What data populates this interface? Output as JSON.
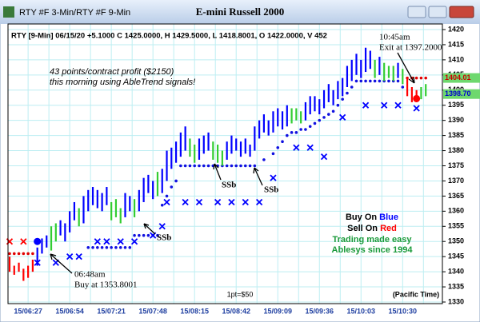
{
  "window_title": "RTY #F 3-Min/RTY #F 9-Min",
  "chart_data": {
    "type": "bar",
    "title": "E-mini Russell 2000",
    "header": "RTY [9-Min] 06/15/20 +5.1000 C 1425.0000, H 1429.5000, L 1418.8001, O 1422.0000, V 452",
    "categories": [
      null,
      null,
      null,
      null,
      "15/06:27",
      null,
      null,
      null,
      null,
      null,
      null,
      null,
      null,
      "15/06:54",
      null,
      null,
      null,
      null,
      null,
      null,
      null,
      null,
      "15/07:21",
      null,
      null,
      null,
      null,
      null,
      null,
      null,
      null,
      "15/07:48",
      null,
      null,
      null,
      null,
      null,
      null,
      null,
      null,
      "15/08:15",
      null,
      null,
      null,
      null,
      null,
      null,
      null,
      null,
      "15/08:42",
      null,
      null,
      null,
      null,
      null,
      null,
      null,
      null,
      "15/09:09",
      null,
      null,
      null,
      null,
      null,
      null,
      null,
      null,
      "15/09:36",
      null,
      null,
      null,
      null,
      null,
      null,
      null,
      null,
      "15/10:03",
      null,
      null,
      null,
      null,
      null,
      null,
      null,
      null,
      "15/10:30",
      null,
      null,
      null,
      null,
      null
    ],
    "low": [
      1340,
      1339,
      1340,
      1337,
      1338,
      1340,
      1342,
      1346,
      1348,
      1347,
      1350,
      1352,
      1350,
      1353,
      1357,
      1355,
      1356,
      1360,
      1362,
      1361,
      1360,
      1362,
      1357,
      1358,
      1356,
      1358,
      1360,
      1358,
      1360,
      1363,
      1366,
      1364,
      1365,
      1366,
      1370,
      1374,
      1376,
      1378,
      1380,
      1378,
      1376,
      1377,
      1379,
      1380,
      1377,
      1376,
      1375,
      1377,
      1379,
      1380,
      1378,
      1379,
      1378,
      1380,
      1384,
      1386,
      1385,
      1386,
      1388,
      1387,
      1388,
      1389,
      1390,
      1389,
      1390,
      1392,
      1393,
      1392,
      1394,
      1396,
      1395,
      1397,
      1398,
      1401,
      1403,
      1405,
      1404,
      1406,
      1407,
      1404,
      1405,
      1403,
      1404,
      1403,
      1404,
      1402,
      1398,
      1396,
      1396,
      1397,
      1398
    ],
    "high": [
      1345,
      1342,
      1343,
      1341,
      1342,
      1344,
      1348,
      1351,
      1352,
      1355,
      1356,
      1357,
      1356,
      1360,
      1363,
      1361,
      1365,
      1367,
      1368,
      1367,
      1366,
      1368,
      1363,
      1364,
      1361,
      1366,
      1365,
      1364,
      1367,
      1371,
      1372,
      1370,
      1373,
      1374,
      1380,
      1381,
      1383,
      1386,
      1388,
      1384,
      1382,
      1384,
      1385,
      1386,
      1383,
      1382,
      1380,
      1383,
      1385,
      1384,
      1383,
      1384,
      1382,
      1388,
      1390,
      1392,
      1390,
      1393,
      1394,
      1393,
      1395,
      1394,
      1394,
      1393,
      1396,
      1398,
      1398,
      1397,
      1400,
      1402,
      1400,
      1403,
      1404,
      1408,
      1410,
      1412,
      1410,
      1414,
      1413,
      1410,
      1411,
      1409,
      1408,
      1408,
      1409,
      1407,
      1404,
      1401,
      1400,
      1401,
      1402
    ],
    "colors": [
      "red",
      "red",
      "red",
      "red",
      "red",
      "red",
      "blue",
      "blue",
      "blue",
      "limegreen",
      "limegreen",
      "blue",
      "blue",
      "blue",
      "blue",
      "limegreen",
      "blue",
      "blue",
      "blue",
      "blue",
      "blue",
      "blue",
      "limegreen",
      "limegreen",
      "limegreen",
      "blue",
      "blue",
      "limegreen",
      "blue",
      "blue",
      "blue",
      "blue",
      "limegreen",
      "blue",
      "blue",
      "blue",
      "blue",
      "blue",
      "blue",
      "limegreen",
      "limegreen",
      "blue",
      "blue",
      "blue",
      "limegreen",
      "limegreen",
      "limegreen",
      "blue",
      "blue",
      "blue",
      "blue",
      "blue",
      "blue",
      "blue",
      "blue",
      "blue",
      "blue",
      "blue",
      "blue",
      "blue",
      "blue",
      "limegreen",
      "limegreen",
      "limegreen",
      "blue",
      "blue",
      "blue",
      "blue",
      "blue",
      "blue",
      "blue",
      "blue",
      "blue",
      "blue",
      "blue",
      "blue",
      "blue",
      "blue",
      "blue",
      "limegreen",
      "blue",
      "limegreen",
      "limegreen",
      "limegreen",
      "blue",
      "limegreen",
      "red",
      "red",
      "red",
      "limegreen",
      "limegreen"
    ],
    "support": [
      null,
      null,
      null,
      null,
      null,
      null,
      null,
      null,
      null,
      null,
      null,
      null,
      null,
      null,
      null,
      null,
      null,
      1348,
      1348,
      1348,
      1348,
      1348,
      1348,
      1348,
      1348,
      1348,
      1348,
      1352,
      1352,
      1352,
      1352,
      1352,
      1352,
      1362,
      1365,
      1368,
      1370,
      1375,
      1375,
      1375,
      1375,
      1375,
      1375,
      1375,
      1375,
      1375,
      1375,
      1375,
      1375,
      1375,
      1375,
      1375,
      1375,
      1375,
      null,
      1377,
      null,
      1379,
      1381,
      1383,
      1385,
      1386,
      1386,
      1387,
      1387,
      1388,
      1389,
      1390,
      1391,
      1392,
      1393,
      1395,
      1397,
      1399,
      1401,
      1403,
      1403,
      1403,
      1403,
      1403,
      1403,
      1403,
      1403,
      1403,
      1403,
      1401,
      null,
      null,
      null,
      null,
      null
    ],
    "stops": [
      1346,
      1346,
      1346,
      1346,
      1346,
      1346,
      null,
      null,
      null,
      null,
      null,
      null,
      null,
      null,
      null,
      null,
      null,
      null,
      null,
      null,
      null,
      null,
      null,
      null,
      null,
      null,
      null,
      null,
      null,
      null,
      null,
      null,
      null,
      null,
      null,
      null,
      null,
      null,
      null,
      null,
      null,
      null,
      null,
      null,
      null,
      null,
      null,
      null,
      null,
      null,
      null,
      null,
      null,
      null,
      null,
      null,
      null,
      null,
      null,
      null,
      null,
      null,
      null,
      null,
      null,
      null,
      null,
      null,
      null,
      null,
      null,
      null,
      null,
      null,
      null,
      null,
      null,
      null,
      null,
      null,
      null,
      null,
      null,
      null,
      null,
      null,
      1404,
      1404,
      1404,
      1404,
      1404
    ],
    "x_marks": [
      {
        "color": "red",
        "points": [
          [
            0,
            1350
          ],
          [
            3,
            1350
          ]
        ]
      },
      {
        "color": "blue",
        "points": [
          [
            6,
            1343
          ],
          [
            10,
            1343
          ],
          [
            13,
            1345
          ],
          [
            15,
            1345
          ],
          [
            19,
            1350
          ],
          [
            21,
            1350
          ],
          [
            24,
            1350
          ],
          [
            27,
            1350
          ],
          [
            31,
            1352
          ],
          [
            33,
            1355
          ],
          [
            34,
            1363
          ],
          [
            38,
            1363
          ],
          [
            41,
            1363
          ],
          [
            45,
            1363
          ],
          [
            48,
            1363
          ],
          [
            51,
            1363
          ],
          [
            54,
            1363
          ],
          [
            57,
            1371
          ],
          [
            62,
            1381
          ],
          [
            65,
            1381
          ],
          [
            68,
            1378
          ],
          [
            72,
            1391
          ],
          [
            77,
            1395
          ],
          [
            81,
            1395
          ],
          [
            84,
            1395
          ],
          [
            88,
            1394
          ]
        ]
      }
    ],
    "markers": [
      {
        "bar": 6,
        "value": 1350,
        "color": "blue"
      },
      {
        "bar": 88,
        "value": 1397.2,
        "color": "red"
      }
    ],
    "ylim": [
      1330,
      1420
    ],
    "yticks": [
      1330,
      1335,
      1340,
      1345,
      1350,
      1355,
      1360,
      1365,
      1370,
      1375,
      1380,
      1385,
      1390,
      1395,
      1400,
      1405,
      1410,
      1415,
      1420
    ],
    "grid": true,
    "price_tags": [
      {
        "value": 1404.01,
        "label": "1404.01",
        "color": "#cc0000"
      },
      {
        "value": 1398.7,
        "label": "1398.70",
        "color": "#0000cc"
      }
    ],
    "annotations": {
      "profit": [
        "43 points/contract profit ($2150)",
        "this morning using AbleTrend signals!"
      ],
      "exit": [
        "10:45am",
        "Exit at 1397.2000"
      ],
      "buy": [
        "06:48am",
        "Buy at 1353.8001"
      ],
      "ssb": [
        "SSb",
        "SSb",
        "SSb"
      ],
      "legend": [
        [
          "Buy On",
          "Blue"
        ],
        [
          "Sell On",
          "Red"
        ],
        [
          "Trading made easy"
        ],
        [
          "Ablesys since 1994"
        ]
      ],
      "point_value": "1pt=$50",
      "timezone": "(Pacific Time)"
    }
  }
}
